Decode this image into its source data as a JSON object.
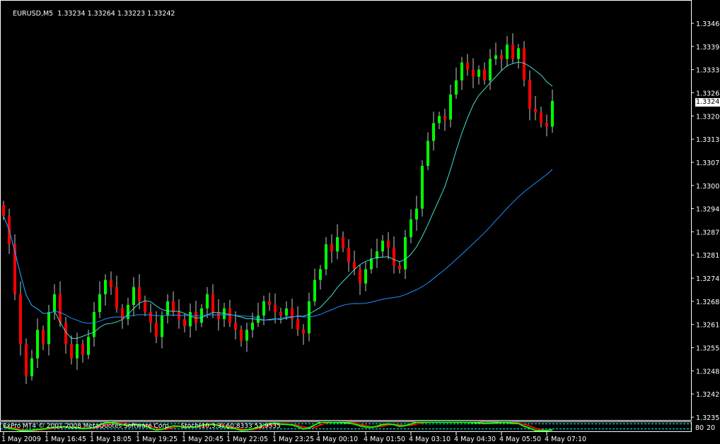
{
  "header": {
    "symbol_timeframe": "EURUSD,M5",
    "ohlc": "1.33234 1.33264 1.33223 1.33242"
  },
  "subwindow": {
    "copyright": "ExPro MT4 © 2001-2008 MetaQuotes Software Corp.",
    "indicator_label": "Stoch(10,3,3) 60.8333 53.9535",
    "levels": [
      "80",
      "20"
    ]
  },
  "colors": {
    "bull": "#00ff00",
    "bear": "#ff0000",
    "ma_fast": "#40e0d0",
    "ma_slow": "#1e90ff",
    "stoch_main": "#00ff00",
    "stoch_signal": "#ff0000",
    "level_line": "#00ffff"
  },
  "chart_data": {
    "type": "candlestick",
    "symbol": "EURUSD",
    "timeframe": "M5",
    "current_price": "1.33242",
    "ylim": [
      1.32355,
      1.3346
    ],
    "y_ticks": [
      "1.33460",
      "1.33395",
      "1.33330",
      "1.33265",
      "1.33200",
      "1.33135",
      "1.33070",
      "1.33005",
      "1.32940",
      "1.32875",
      "1.32810",
      "1.32745",
      "1.32680",
      "1.32615",
      "1.32550",
      "1.32485",
      "1.32420",
      "1.32355"
    ],
    "x_ticks": [
      "1 May 2009",
      "1 May 16:45",
      "1 May 18:05",
      "1 May 19:25",
      "1 May 20:45",
      "1 May 22:05",
      "1 May 23:25",
      "4 May 00:10",
      "4 May 01:50",
      "4 May 03:10",
      "4 May 04:30",
      "4 May 05:50",
      "4 May 07:10"
    ],
    "closes": [
      1.3292,
      1.3284,
      1.327,
      1.3256,
      1.3247,
      1.3252,
      1.326,
      1.3256,
      1.3265,
      1.327,
      1.3262,
      1.3256,
      1.3252,
      1.3256,
      1.3253,
      1.3258,
      1.3265,
      1.327,
      1.3274,
      1.3272,
      1.3266,
      1.3263,
      1.3267,
      1.3272,
      1.3268,
      1.3265,
      1.3262,
      1.3258,
      1.3264,
      1.3268,
      1.3265,
      1.3263,
      1.3261,
      1.3265,
      1.3262,
      1.3266,
      1.327,
      1.3265,
      1.3263,
      1.3266,
      1.3262,
      1.326,
      1.3257,
      1.326,
      1.3262,
      1.3264,
      1.3268,
      1.3267,
      1.3265,
      1.3264,
      1.3266,
      1.3263,
      1.326,
      1.3259,
      1.3268,
      1.3274,
      1.3277,
      1.3284,
      1.3282,
      1.3286,
      1.3283,
      1.3279,
      1.3277,
      1.3273,
      1.3277,
      1.328,
      1.3282,
      1.3285,
      1.3283,
      1.3278,
      1.3277,
      1.3286,
      1.3291,
      1.3294,
      1.3306,
      1.3313,
      1.3318,
      1.332,
      1.3319,
      1.3326,
      1.333,
      1.3335,
      1.3333,
      1.3331,
      1.3333,
      1.333,
      1.3336,
      1.3337,
      1.3336,
      1.334,
      1.3336,
      1.3339,
      1.333,
      1.3322,
      1.3321,
      1.3318,
      1.3317,
      1.33242
    ]
  }
}
